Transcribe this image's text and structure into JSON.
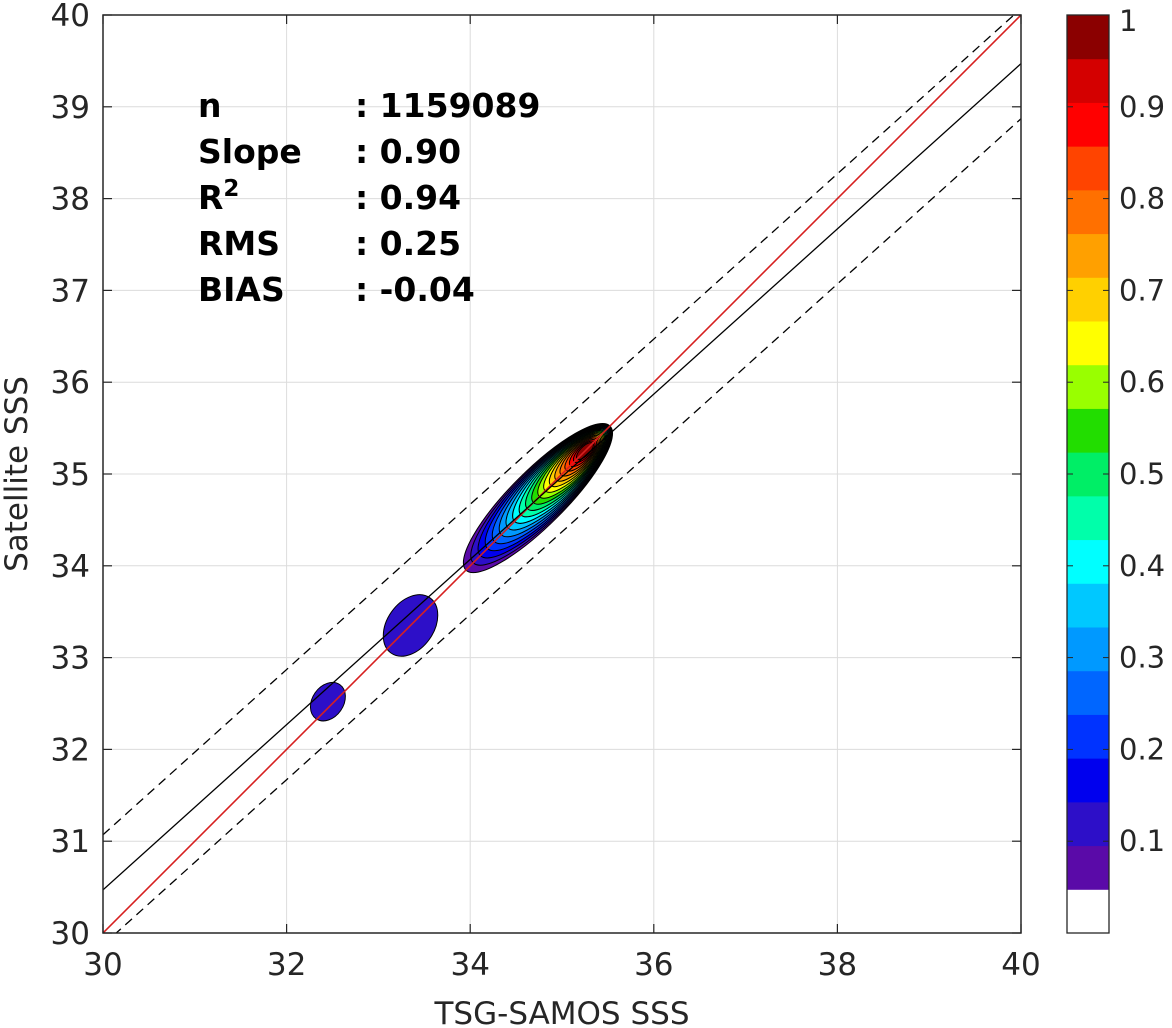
{
  "chart_data": {
    "type": "heatmap",
    "subtype": "density-contour-scatter",
    "xlabel": "TSG-SAMOS SSS",
    "ylabel": "Satellite SSS",
    "xlim": [
      30,
      40
    ],
    "ylim": [
      30,
      40
    ],
    "xticks": [
      "30",
      "32",
      "34",
      "36",
      "38",
      "40"
    ],
    "yticks": [
      "30",
      "31",
      "32",
      "33",
      "34",
      "35",
      "36",
      "37",
      "38",
      "39",
      "40"
    ],
    "grid": true,
    "stats": [
      {
        "label": "n",
        "sep": ": ",
        "value": "1159089"
      },
      {
        "label": "Slope",
        "sep": ": ",
        "value": "0.90"
      },
      {
        "label": "R",
        "sup": "2",
        "sep": ": ",
        "value": "0.94"
      },
      {
        "label": "RMS",
        "sep": ": ",
        "value": "0.25"
      },
      {
        "label": "BIAS",
        "sep": ": ",
        "value": "-0.04"
      }
    ],
    "reference_lines": [
      {
        "kind": "one-to-one",
        "color": "#d62020",
        "points": [
          [
            30,
            30
          ],
          [
            40,
            40
          ]
        ]
      },
      {
        "kind": "regression",
        "color": "#000000",
        "points": [
          [
            30,
            30.47
          ],
          [
            40,
            39.47
          ]
        ]
      },
      {
        "kind": "upper-bound",
        "color": "#000000",
        "dashed": true,
        "points": [
          [
            30,
            31.07
          ],
          [
            40,
            40.07
          ]
        ]
      },
      {
        "kind": "lower-bound",
        "color": "#000000",
        "dashed": true,
        "points": [
          [
            30,
            29.87
          ],
          [
            40,
            38.87
          ]
        ]
      }
    ],
    "density_peak": {
      "x": 35.25,
      "y": 35.25
    },
    "density_blobs": [
      {
        "center": [
          32.45,
          32.52
        ],
        "level": 0.1
      },
      {
        "center": [
          33.35,
          33.35
        ],
        "level": 0.1
      }
    ],
    "colorbar": {
      "range": [
        0,
        1
      ],
      "tick_labels": [
        "0.1",
        "0.2",
        "0.3",
        "0.4",
        "0.5",
        "0.6",
        "0.7",
        "0.8",
        "0.9",
        "1"
      ],
      "tick_values": [
        0.1,
        0.2,
        0.3,
        0.4,
        0.5,
        0.6,
        0.7,
        0.8,
        0.9,
        1.0
      ],
      "colors": [
        "#ffffff",
        "#5a0aa8",
        "#2d0fc8",
        "#0000ee",
        "#0033ff",
        "#0066ff",
        "#0099ff",
        "#00c8ff",
        "#00ffff",
        "#00ffaa",
        "#00ee66",
        "#22dd00",
        "#99ff00",
        "#ffff00",
        "#ffd000",
        "#ffa000",
        "#ff7000",
        "#ff4400",
        "#ff0000",
        "#d40000",
        "#8b0000"
      ]
    }
  }
}
